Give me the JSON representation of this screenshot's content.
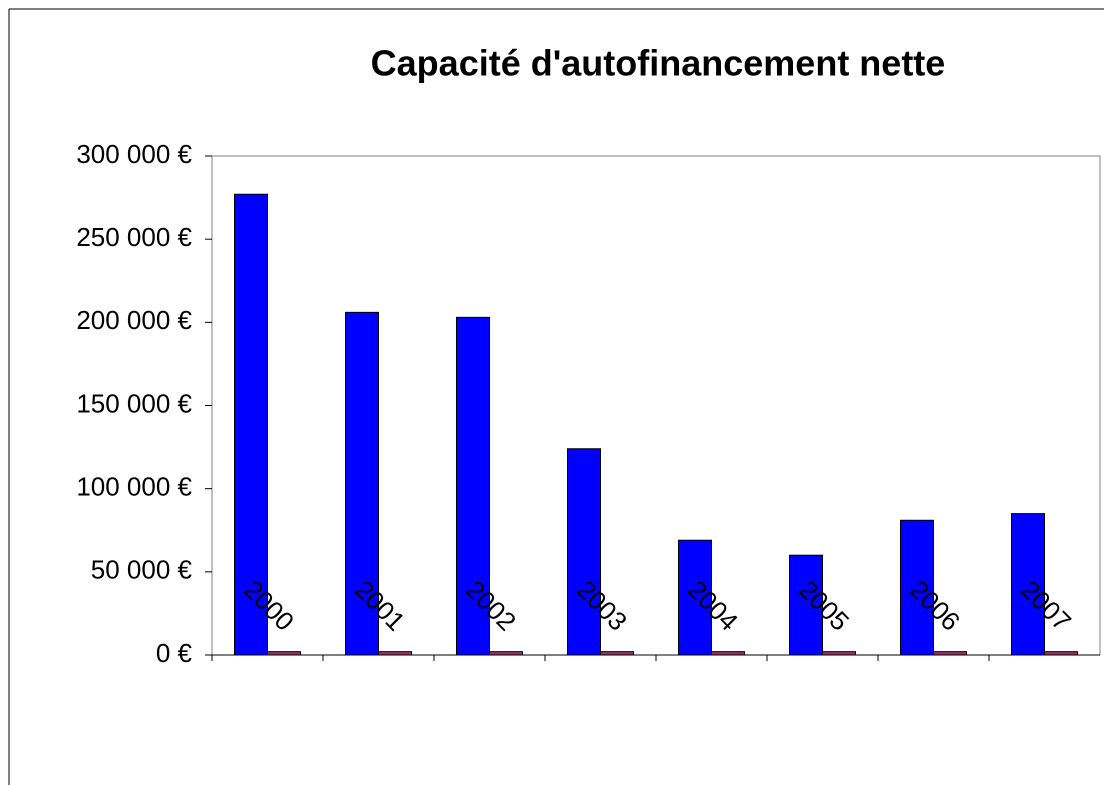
{
  "chart_data": {
    "type": "bar",
    "title": "Capacité d'autofinancement nette",
    "categories": [
      "2000",
      "2001",
      "2002",
      "2003",
      "2004",
      "2005",
      "2006",
      "2007"
    ],
    "series": [
      {
        "color": "#0000ff",
        "values": [
          277000,
          206000,
          203000,
          124000,
          69000,
          60000,
          81000,
          85000
        ]
      },
      {
        "color": "#993366",
        "values": [
          2000,
          2000,
          2000,
          2000,
          2000,
          2000,
          2000,
          2000
        ]
      }
    ],
    "ylim": [
      0,
      300000
    ],
    "yticks": [
      {
        "value": 0,
        "label": "0 €"
      },
      {
        "value": 50000,
        "label": "50 000 €"
      },
      {
        "value": 100000,
        "label": "100 000 €"
      },
      {
        "value": 150000,
        "label": "150 000 €"
      },
      {
        "value": 200000,
        "label": "200 000 €"
      },
      {
        "value": 250000,
        "label": "250 000 €"
      },
      {
        "value": 300000,
        "label": "300 000 €"
      }
    ]
  }
}
